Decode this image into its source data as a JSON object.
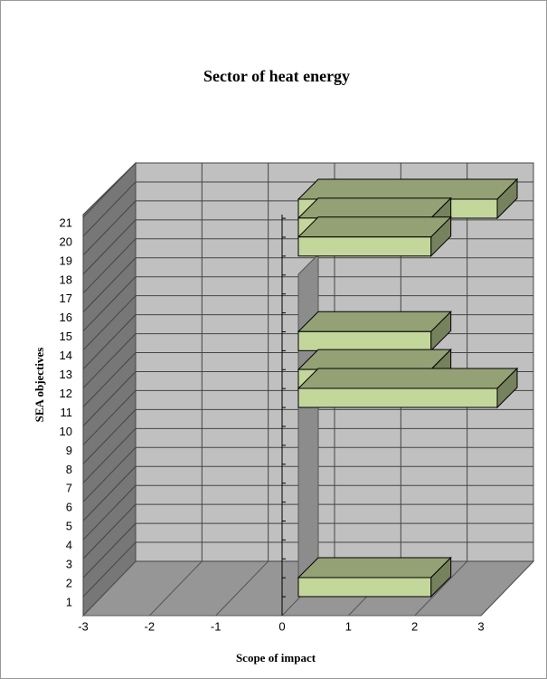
{
  "chart_data": {
    "type": "bar3d",
    "orientation": "horizontal",
    "title": "Sector of heat energy",
    "x_label": "Scope of impact",
    "y_label": "SEA objectives",
    "categories": [
      "1",
      "2",
      "3",
      "4",
      "5",
      "6",
      "7",
      "8",
      "9",
      "10",
      "11",
      "12",
      "13",
      "14",
      "15",
      "16",
      "17",
      "18",
      "19",
      "20",
      "21"
    ],
    "values": [
      2,
      0,
      0,
      0,
      0,
      0,
      0,
      0,
      0,
      0,
      3,
      2,
      0,
      2,
      0,
      0,
      0,
      0,
      2,
      2,
      3
    ],
    "color": "#c4d79b",
    "xlim": [
      -3,
      3
    ],
    "xticks": [
      -3,
      -2,
      -1,
      0,
      1,
      2,
      3
    ],
    "grid": true
  }
}
